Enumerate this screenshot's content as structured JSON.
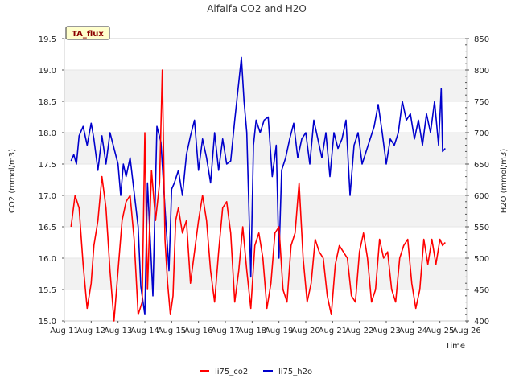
{
  "chart_data": {
    "type": "line",
    "title": "Alfalfa CO2 and H2O",
    "badge": "TA_flux",
    "xlabel": "Time",
    "ylabel_left": "CO2 (mmol/m3)",
    "ylabel_right": "H2O (mmol/m3)",
    "x_ticks": [
      "Aug 11",
      "Aug 12",
      "Aug 13",
      "Aug 14",
      "Aug 15",
      "Aug 16",
      "Aug 17",
      "Aug 18",
      "Aug 19",
      "Aug 20",
      "Aug 21",
      "Aug 22",
      "Aug 23",
      "Aug 24",
      "Aug 25",
      "Aug 26"
    ],
    "y_left_ticks": [
      "15.0",
      "15.5",
      "16.0",
      "16.5",
      "17.0",
      "17.5",
      "18.0",
      "18.5",
      "19.0",
      "19.5"
    ],
    "y_right_ticks": [
      "400",
      "450",
      "500",
      "550",
      "600",
      "650",
      "700",
      "750",
      "800",
      "850"
    ],
    "xlim_days": [
      11,
      26
    ],
    "ylim_left": [
      15.0,
      19.5
    ],
    "ylim_right": [
      400,
      850
    ],
    "grid": "horizontal bands",
    "legend_position": "bottom-center",
    "series": [
      {
        "name": "li75_co2",
        "axis": "left",
        "color": "#ff0000",
        "x": [
          11.25,
          11.4,
          11.55,
          11.7,
          11.85,
          12.0,
          12.1,
          12.25,
          12.4,
          12.55,
          12.7,
          12.85,
          13.0,
          13.15,
          13.3,
          13.45,
          13.6,
          13.75,
          13.9,
          14.0,
          14.1,
          14.25,
          14.4,
          14.55,
          14.65,
          14.75,
          14.85,
          14.95,
          15.05,
          15.15,
          15.25,
          15.4,
          15.55,
          15.7,
          15.85,
          16.0,
          16.15,
          16.3,
          16.45,
          16.6,
          16.75,
          16.9,
          17.05,
          17.2,
          17.35,
          17.5,
          17.65,
          17.8,
          17.95,
          18.1,
          18.25,
          18.4,
          18.55,
          18.7,
          18.85,
          19.0,
          19.15,
          19.3,
          19.45,
          19.6,
          19.75,
          19.9,
          20.05,
          20.2,
          20.35,
          20.5,
          20.65,
          20.8,
          20.95,
          21.1,
          21.25,
          21.4,
          21.55,
          21.7,
          21.85,
          22.0,
          22.15,
          22.3,
          22.45,
          22.6,
          22.75,
          22.9,
          23.05,
          23.2,
          23.35,
          23.5,
          23.65,
          23.8,
          23.95,
          24.1,
          24.25,
          24.4,
          24.55,
          24.7,
          24.85,
          25.0,
          25.1,
          25.2
        ],
        "values": [
          16.5,
          17.0,
          16.8,
          15.9,
          15.2,
          15.6,
          16.2,
          16.6,
          17.3,
          16.8,
          15.8,
          15.0,
          15.8,
          16.6,
          16.9,
          17.0,
          16.3,
          15.1,
          15.3,
          18.0,
          15.5,
          17.4,
          16.6,
          17.2,
          19.0,
          16.3,
          15.6,
          15.1,
          15.4,
          16.6,
          16.8,
          16.4,
          16.6,
          15.6,
          16.1,
          16.6,
          17.0,
          16.6,
          15.8,
          15.3,
          16.1,
          16.8,
          16.9,
          16.4,
          15.3,
          15.8,
          16.5,
          15.8,
          15.2,
          16.2,
          16.4,
          16.0,
          15.2,
          15.6,
          16.4,
          16.5,
          15.5,
          15.3,
          16.2,
          16.4,
          17.2,
          16.0,
          15.3,
          15.6,
          16.3,
          16.1,
          16.0,
          15.4,
          15.1,
          15.9,
          16.2,
          16.1,
          16.0,
          15.4,
          15.3,
          16.1,
          16.4,
          16.0,
          15.3,
          15.5,
          16.3,
          16.0,
          16.1,
          15.5,
          15.3,
          16.0,
          16.2,
          16.3,
          15.6,
          15.2,
          15.5,
          16.3,
          15.9,
          16.3,
          15.9,
          16.3,
          16.2,
          16.25
        ]
      },
      {
        "name": "li75_h2o",
        "axis": "right",
        "color": "#0000cc",
        "x": [
          11.25,
          11.35,
          11.45,
          11.55,
          11.7,
          11.85,
          12.0,
          12.1,
          12.25,
          12.4,
          12.55,
          12.7,
          12.85,
          13.0,
          13.1,
          13.2,
          13.3,
          13.45,
          13.6,
          13.75,
          13.85,
          14.0,
          14.1,
          14.2,
          14.3,
          14.45,
          14.6,
          14.75,
          14.9,
          15.0,
          15.1,
          15.25,
          15.4,
          15.55,
          15.7,
          15.85,
          16.0,
          16.15,
          16.3,
          16.45,
          16.6,
          16.75,
          16.9,
          17.05,
          17.2,
          17.35,
          17.5,
          17.6,
          17.7,
          17.8,
          17.95,
          18.05,
          18.15,
          18.3,
          18.45,
          18.6,
          18.75,
          18.9,
          19.0,
          19.1,
          19.25,
          19.4,
          19.55,
          19.7,
          19.85,
          20.0,
          20.15,
          20.3,
          20.45,
          20.6,
          20.75,
          20.9,
          21.05,
          21.2,
          21.35,
          21.5,
          21.65,
          21.8,
          21.95,
          22.1,
          22.25,
          22.4,
          22.55,
          22.7,
          22.85,
          23.0,
          23.15,
          23.3,
          23.45,
          23.6,
          23.75,
          23.9,
          24.05,
          24.2,
          24.35,
          24.5,
          24.65,
          24.8,
          24.95,
          25.05,
          25.1,
          25.2
        ],
        "values": [
          655,
          665,
          650,
          695,
          710,
          680,
          715,
          690,
          640,
          695,
          650,
          700,
          675,
          650,
          600,
          650,
          630,
          660,
          605,
          550,
          455,
          410,
          620,
          530,
          440,
          710,
          685,
          580,
          480,
          610,
          620,
          640,
          600,
          665,
          695,
          720,
          640,
          690,
          660,
          620,
          700,
          640,
          690,
          650,
          655,
          720,
          780,
          820,
          750,
          700,
          470,
          680,
          720,
          700,
          720,
          725,
          630,
          680,
          500,
          640,
          660,
          690,
          715,
          660,
          690,
          700,
          650,
          720,
          690,
          660,
          700,
          630,
          700,
          675,
          690,
          720,
          600,
          680,
          700,
          650,
          670,
          690,
          710,
          745,
          700,
          650,
          690,
          680,
          700,
          750,
          720,
          730,
          690,
          720,
          680,
          730,
          700,
          750,
          680,
          770,
          670,
          675
        ]
      }
    ]
  }
}
